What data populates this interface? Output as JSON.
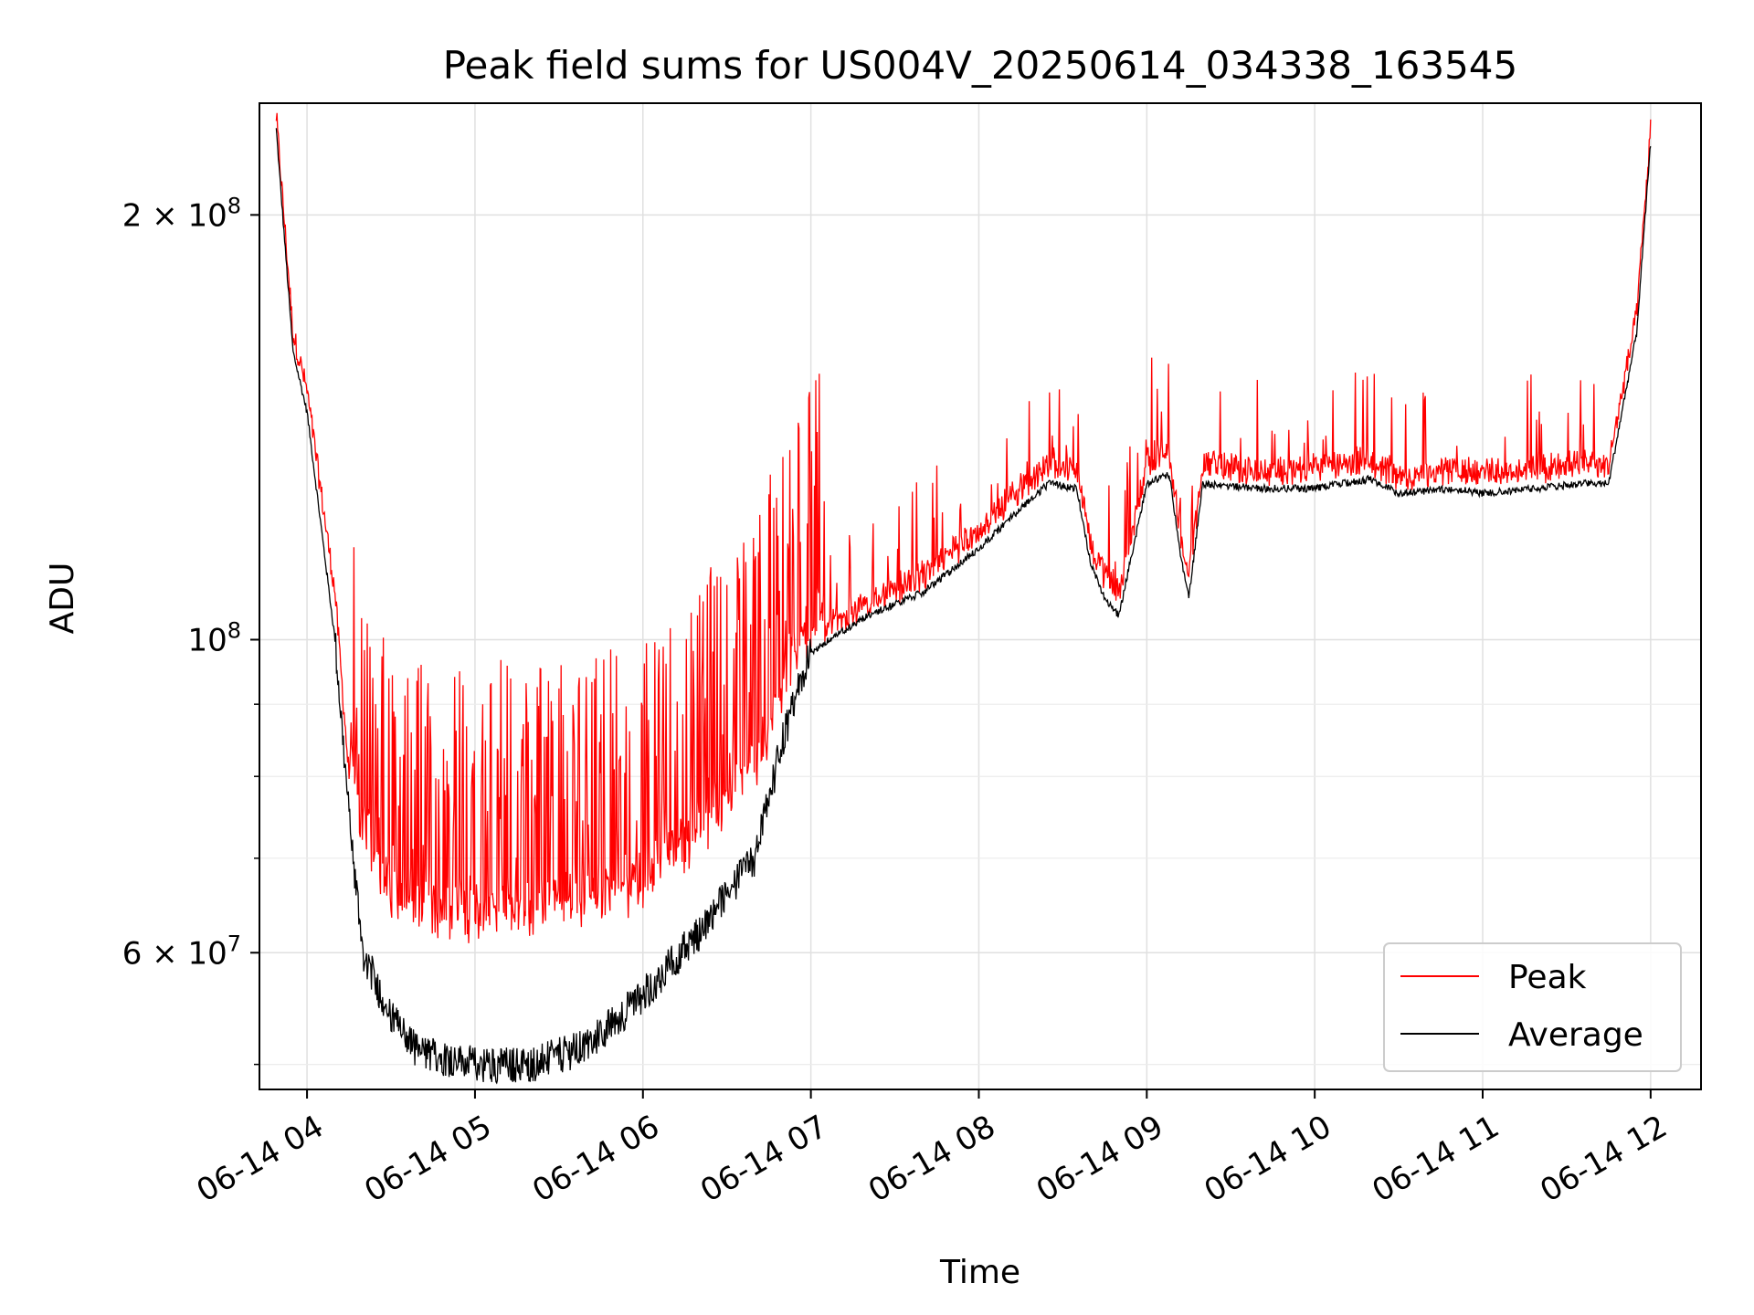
{
  "chart_data": {
    "type": "line",
    "title": "Peak field sums for US004V_20250614_034338_163545",
    "xlabel": "Time",
    "ylabel": "ADU",
    "yscale": "log",
    "xlim": [
      "06-14 03:43",
      "06-14 12:18"
    ],
    "ylim": [
      48000000,
      240000000
    ],
    "x_tick_labels": [
      "06-14 04",
      "06-14 05",
      "06-14 06",
      "06-14 07",
      "06-14 08",
      "06-14 09",
      "06-14 10",
      "06-14 11",
      "06-14 12"
    ],
    "y_tick_labels": [
      {
        "mantissa": "2",
        "exponent": "8",
        "value": 200000000
      },
      {
        "mantissa": "",
        "exponent": "8",
        "value": 100000000
      },
      {
        "mantissa": "6",
        "exponent": "7",
        "value": 60000000
      }
    ],
    "grid": true,
    "legend_position": "lower-right",
    "colors": {
      "peak": "#ff0000",
      "average": "#000000"
    },
    "x": [
      "06-14 03:49",
      "06-14 03:55",
      "06-14 04:00",
      "06-14 04:10",
      "06-14 04:15",
      "06-14 04:20",
      "06-14 04:30",
      "06-14 04:40",
      "06-14 05:00",
      "06-14 05:20",
      "06-14 05:40",
      "06-14 06:00",
      "06-14 06:20",
      "06-14 06:40",
      "06-14 06:50",
      "06-14 07:00",
      "06-14 07:20",
      "06-14 07:40",
      "06-14 08:00",
      "06-14 08:15",
      "06-14 08:25",
      "06-14 08:35",
      "06-14 08:40",
      "06-14 08:45",
      "06-14 08:50",
      "06-14 09:00",
      "06-14 09:08",
      "06-14 09:12",
      "06-14 09:15",
      "06-14 09:20",
      "06-14 09:40",
      "06-14 10:00",
      "06-14 10:20",
      "06-14 10:30",
      "06-14 10:50",
      "06-14 11:00",
      "06-14 11:20",
      "06-14 11:35",
      "06-14 11:45",
      "06-14 11:55",
      "06-14 12:00"
    ],
    "series": [
      {
        "name": "Peak",
        "values": [
          235000000,
          165000000,
          150000000,
          108000000,
          80000000,
          71000000,
          64000000,
          62000000,
          62000000,
          62000000,
          63000000,
          65000000,
          71000000,
          78000000,
          90000000,
          100000000,
          105000000,
          110000000,
          118000000,
          127000000,
          132000000,
          131000000,
          116000000,
          110000000,
          107000000,
          132000000,
          134000000,
          118000000,
          110000000,
          132000000,
          130000000,
          131000000,
          133000000,
          129000000,
          131000000,
          130000000,
          131000000,
          132000000,
          133000000,
          170000000,
          230000000
        ]
      },
      {
        "name": "Average",
        "values": [
          230000000,
          160000000,
          145000000,
          100000000,
          75000000,
          60000000,
          54000000,
          51000000,
          50000000,
          50000000,
          51500000,
          56000000,
          62000000,
          70000000,
          85000000,
          98000000,
          104000000,
          108000000,
          116000000,
          124000000,
          129000000,
          128000000,
          113000000,
          107000000,
          104000000,
          129000000,
          131000000,
          115000000,
          107000000,
          129000000,
          128000000,
          128000000,
          130000000,
          127000000,
          128000000,
          127000000,
          128000000,
          129000000,
          129000000,
          165000000,
          225000000
        ]
      }
    ],
    "legend": [
      "Peak",
      "Average"
    ]
  }
}
